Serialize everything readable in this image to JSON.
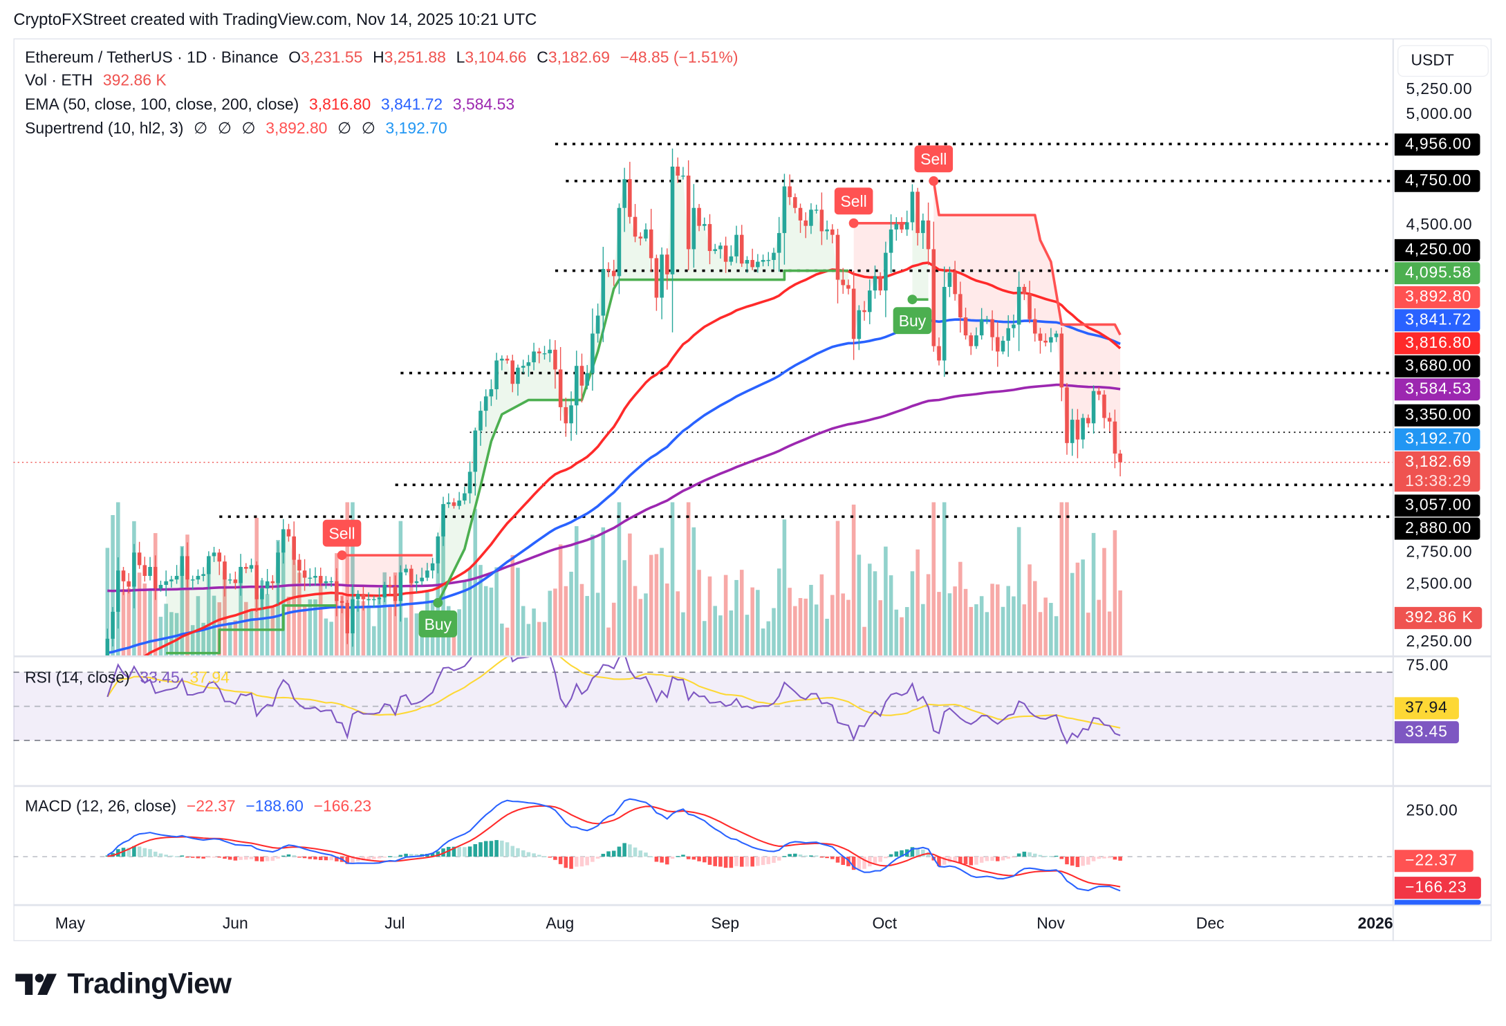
{
  "credit": "CryptoFXStreet created with TradingView.com, Nov 14, 2025 10:21 UTC",
  "legend": {
    "symbol": "Ethereum / TetherUS · 1D · Binance",
    "o_label": "O",
    "o": "3,231.55",
    "h_label": "H",
    "h": "3,251.88",
    "l_label": "L",
    "l": "3,104.66",
    "c_label": "C",
    "c": "3,182.69",
    "change": "−48.85 (−1.51%)",
    "vol_label": "Vol · ETH",
    "vol": "392.86 K",
    "ema_label": "EMA (50, close, 100, close, 200, close)",
    "ema50": "3,816.80",
    "ema100": "3,841.72",
    "ema200": "3,584.53",
    "st_label": "Supertrend (10, hl2, 3)",
    "st_empty": "∅",
    "st_down": "3,892.80",
    "st_up": "3,192.70",
    "rsi_label": "RSI (14, close)",
    "rsi": "33.45",
    "rsi_ma": "37.94",
    "macd_label": "MACD (12, 26, close)",
    "macd_hist": "−22.37",
    "macd": "−188.60",
    "macd_signal": "−166.23"
  },
  "price_axis": {
    "currency": "USDT",
    "ticks": [
      "5,250.00",
      "5,000.00",
      "4,500.00",
      "2,750.00",
      "2,500.00",
      "2,250.00"
    ],
    "badges": [
      {
        "text": "4,956.00",
        "color": "#000000"
      },
      {
        "text": "4,750.00",
        "color": "#000000"
      },
      {
        "text": "4,250.00",
        "color": "#000000"
      },
      {
        "text": "4,095.58",
        "color": "#4CAF50"
      },
      {
        "text": "3,892.80",
        "color": "#FF5252"
      },
      {
        "text": "3,841.72",
        "color": "#2962FF"
      },
      {
        "text": "3,816.80",
        "color": "#FF2A2A"
      },
      {
        "text": "3,680.00",
        "color": "#000000"
      },
      {
        "text": "3,584.53",
        "color": "#9C27B0"
      },
      {
        "text": "3,350.00",
        "color": "#000000"
      },
      {
        "text": "3,192.70",
        "color": "#2196F3"
      },
      {
        "text": "3,182.69",
        "color": "#EF5350"
      },
      {
        "text": "3,057.00",
        "color": "#000000"
      },
      {
        "text": "2,880.00",
        "color": "#000000"
      },
      {
        "text": "392.86 K",
        "color": "#EF5350"
      }
    ],
    "countdown": "13:38:29"
  },
  "rsi_axis": {
    "tick": "75.00",
    "badges": [
      {
        "text": "37.94",
        "color": "#FDD835"
      },
      {
        "text": "33.45",
        "color": "#7E57C2"
      }
    ]
  },
  "macd_axis": {
    "tick": "250.00",
    "badges": [
      {
        "text": "−22.37",
        "color": "#FF5252"
      },
      {
        "text": "−166.23",
        "color": "#F23645"
      }
    ]
  },
  "time_axis": {
    "labels": [
      "May",
      "Jun",
      "Jul",
      "Aug",
      "Sep",
      "Oct",
      "Nov",
      "Dec",
      "2026"
    ]
  },
  "logo": {
    "text": "TradingView"
  },
  "colors": {
    "up": "#26A69A",
    "down": "#EF5350",
    "ema50": "#FF2A2A",
    "ema100": "#2962FF",
    "ema200": "#9C27B0",
    "st_up": "#4CAF50",
    "st_down": "#FF5252",
    "rsi": "#7E57C2",
    "rsi_ma": "#FDD835",
    "macd": "#2962FF",
    "signal": "#FF2A2A"
  },
  "chart_data": {
    "type": "candlestick",
    "title": "Ethereum / TetherUS · 1D · Binance",
    "x_range": [
      "2025-04-20",
      "2026-01-01"
    ],
    "y_range": [
      2105,
      5400
    ],
    "grid": false,
    "candles": {
      "start": "2025-05-08",
      "close": [
        2200,
        2350,
        2580,
        2520,
        2490,
        2680,
        2610,
        2550,
        2600,
        2480,
        2500,
        2520,
        2530,
        2550,
        2660,
        2530,
        2530,
        2550,
        2560,
        2660,
        2680,
        2630,
        2530,
        2530,
        2510,
        2600,
        2590,
        2610,
        2420,
        2480,
        2520,
        2510,
        2680,
        2810,
        2770,
        2640,
        2580,
        2540,
        2540,
        2550,
        2510,
        2520,
        2520,
        2410,
        2400,
        2230,
        2420,
        2450,
        2420,
        2420,
        2420,
        2430,
        2500,
        2490,
        2410,
        2570,
        2590,
        2510,
        2520,
        2540,
        2580,
        2620,
        2770,
        2950,
        2960,
        2940,
        2970,
        3010,
        3130,
        3360,
        3470,
        3550,
        3590,
        3750,
        3760,
        3750,
        3620,
        3710,
        3720,
        3740,
        3800,
        3790,
        3790,
        3810,
        3700,
        3490,
        3400,
        3500,
        3720,
        3610,
        3680,
        3900,
        4000,
        4260,
        4250,
        4220,
        4600,
        4760,
        4550,
        4440,
        4430,
        4480,
        4320,
        4100,
        4340,
        4230,
        4830,
        4780,
        4780,
        4370,
        4600,
        4500,
        4510,
        4360,
        4370,
        4390,
        4300,
        4330,
        4450,
        4290,
        4310,
        4270,
        4300,
        4310,
        4310,
        4350,
        4460,
        4720,
        4660,
        4600,
        4530,
        4500,
        4590,
        4590,
        4470,
        4480,
        4450,
        4200,
        4170,
        4150,
        3870,
        4030,
        4020,
        4140,
        4220,
        4140,
        4350,
        4480,
        4510,
        4480,
        4520,
        4690,
        4460,
        4530,
        4370,
        3830,
        3750,
        4160,
        4240,
        4120,
        3990,
        3890,
        3830,
        3890,
        3980,
        3980,
        3880,
        3800,
        3860,
        3930,
        3950,
        4160,
        4120,
        3980,
        3900,
        3860,
        3850,
        3880,
        3900,
        3600,
        3290,
        3420,
        3310,
        3430,
        3400,
        3580,
        3560,
        3430,
        3410,
        3231.55,
        3182.69
      ]
    },
    "last_candle": {
      "open": 3231.55,
      "high": 3251.88,
      "low": 3104.66,
      "close": 3182.69
    },
    "horizontal_levels": [
      {
        "price": 4956,
        "from": "2025-07-31",
        "style": "dotted"
      },
      {
        "price": 4750,
        "from": "2025-08-02",
        "style": "dotted"
      },
      {
        "price": 4250,
        "from": "2025-07-31",
        "style": "dotted"
      },
      {
        "price": 3680,
        "from": "2025-07-02",
        "style": "dotted"
      },
      {
        "price": 3350,
        "from": "2025-07-15",
        "style": "fine-dotted"
      },
      {
        "price": 3057,
        "from": "2025-07-01",
        "style": "dotted"
      },
      {
        "price": 2880,
        "from": "2025-05-29",
        "style": "dotted"
      }
    ],
    "current_price": 3182.69,
    "supertrend": [
      {
        "trend": "up",
        "points": [
          [
            "2025-05-19",
            2120
          ],
          [
            "2025-05-29",
            2120
          ],
          [
            "2025-05-29",
            2250
          ],
          [
            "2025-06-10",
            2250
          ],
          [
            "2025-06-10",
            2385
          ],
          [
            "2025-06-20",
            2385
          ]
        ]
      },
      {
        "trend": "down",
        "points": [
          [
            "2025-06-21",
            2665
          ],
          [
            "2025-07-08",
            2665
          ]
        ]
      },
      {
        "trend": "up",
        "points": [
          [
            "2025-07-09",
            2400
          ],
          [
            "2025-07-14",
            2700
          ],
          [
            "2025-07-17",
            3050
          ],
          [
            "2025-07-19",
            3300
          ],
          [
            "2025-07-21",
            3450
          ],
          [
            "2025-07-26",
            3530
          ],
          [
            "2025-08-05",
            3530
          ],
          [
            "2025-08-08",
            3800
          ],
          [
            "2025-08-11",
            4150
          ],
          [
            "2025-08-12",
            4200
          ],
          [
            "2025-09-12",
            4200
          ],
          [
            "2025-09-12",
            4250
          ],
          [
            "2025-09-24",
            4250
          ]
        ]
      },
      {
        "trend": "down",
        "points": [
          [
            "2025-09-25",
            4515
          ],
          [
            "2025-10-05",
            4515
          ]
        ]
      },
      {
        "trend": "up",
        "points": [
          [
            "2025-10-06",
            4090
          ],
          [
            "2025-10-09",
            4090
          ]
        ]
      },
      {
        "trend": "down",
        "points": [
          [
            "2025-10-10",
            4750
          ],
          [
            "2025-10-11",
            4560
          ],
          [
            "2025-10-29",
            4560
          ],
          [
            "2025-10-30",
            4420
          ],
          [
            "2025-11-01",
            4300
          ],
          [
            "2025-11-03",
            3950
          ],
          [
            "2025-11-13",
            3950
          ],
          [
            "2025-11-14",
            3892.8
          ]
        ]
      }
    ],
    "signals": [
      {
        "type": "Sell",
        "date": "2025-06-21",
        "price": 2665
      },
      {
        "type": "Buy",
        "date": "2025-07-09",
        "price": 2400
      },
      {
        "type": "Sell",
        "date": "2025-09-25",
        "price": 4515
      },
      {
        "type": "Buy",
        "date": "2025-10-06",
        "price": 4090
      },
      {
        "type": "Sell",
        "date": "2025-10-10",
        "price": 4750
      }
    ],
    "rsi": {
      "levels": [
        70,
        50,
        30
      ],
      "y_range": [
        15,
        80
      ]
    },
    "macd": {
      "zero_line": true
    }
  }
}
